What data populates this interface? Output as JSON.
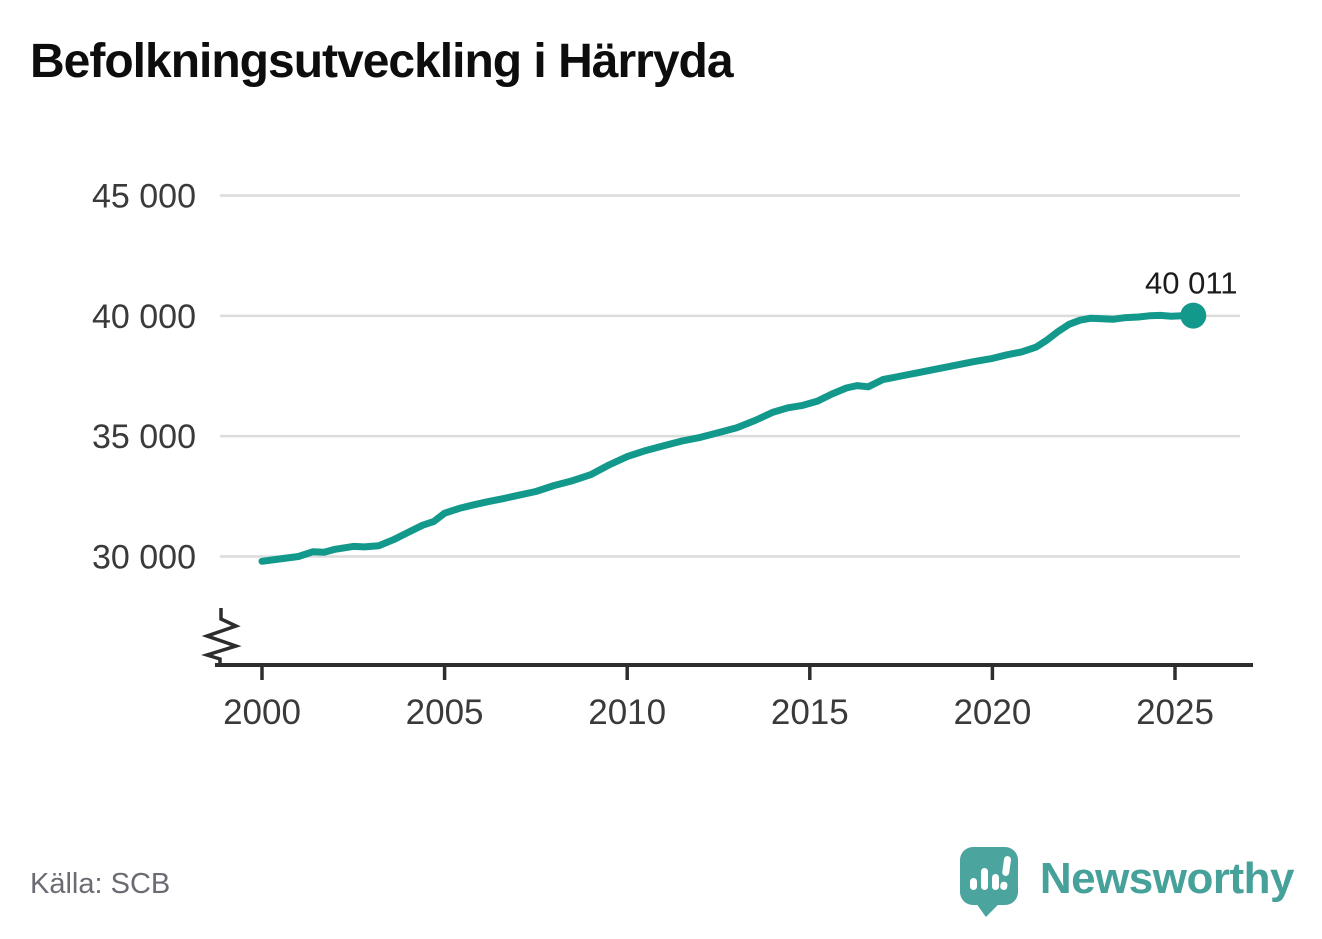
{
  "title": "Befolkningsutveckling i Härryda",
  "source": "Källa: SCB",
  "branding": {
    "wordmark": "Newsworthy",
    "logo_icon": "bar-chart-exclamation-speech-bubble"
  },
  "colors": {
    "line": "#12998c",
    "end_dot": "#12998c",
    "grid": "#dcdcdc",
    "axis": "#2d2d2d",
    "tick_label": "#3a3a3a",
    "end_label": "#1b1b1b",
    "title": "#0d0d0d",
    "source_text": "#6b6b74",
    "brand_teal": "#4ba59e",
    "wordmark_teal": "#45a19a"
  },
  "chart_data": {
    "type": "line",
    "title": "Befolkningsutveckling i Härryda",
    "xlabel": "",
    "ylabel": "",
    "grid": "horizontal",
    "legend": "none",
    "axis_break_bottom_left": true,
    "x_ticks": [
      {
        "value": 2000,
        "label": "2000"
      },
      {
        "value": 2005,
        "label": "2005"
      },
      {
        "value": 2010,
        "label": "2010"
      },
      {
        "value": 2015,
        "label": "2015"
      },
      {
        "value": 2020,
        "label": "2020"
      },
      {
        "value": 2025,
        "label": "2025"
      }
    ],
    "y_ticks": [
      {
        "value": 30000,
        "label": "30 000"
      },
      {
        "value": 35000,
        "label": "35 000"
      },
      {
        "value": 40000,
        "label": "40 000"
      },
      {
        "value": 45000,
        "label": "45 000"
      }
    ],
    "xlim": [
      1998.7,
      2027.1
    ],
    "ylim": [
      27500,
      46500
    ],
    "end_label": "40 011",
    "last_point": {
      "x": 2025.5,
      "y": 40011
    },
    "series": [
      {
        "name": "Befolkning i Härryda",
        "points": [
          [
            2000.0,
            29800
          ],
          [
            2000.5,
            29900
          ],
          [
            2001.0,
            30000
          ],
          [
            2001.4,
            30200
          ],
          [
            2001.7,
            30180
          ],
          [
            2002.0,
            30300
          ],
          [
            2002.5,
            30420
          ],
          [
            2002.8,
            30400
          ],
          [
            2003.2,
            30450
          ],
          [
            2003.6,
            30700
          ],
          [
            2004.0,
            31000
          ],
          [
            2004.4,
            31300
          ],
          [
            2004.7,
            31450
          ],
          [
            2005.0,
            31800
          ],
          [
            2005.4,
            32000
          ],
          [
            2005.8,
            32150
          ],
          [
            2006.2,
            32280
          ],
          [
            2006.6,
            32400
          ],
          [
            2007.0,
            32540
          ],
          [
            2007.5,
            32700
          ],
          [
            2008.0,
            32950
          ],
          [
            2008.5,
            33150
          ],
          [
            2009.0,
            33400
          ],
          [
            2009.5,
            33800
          ],
          [
            2010.0,
            34150
          ],
          [
            2010.5,
            34400
          ],
          [
            2011.0,
            34600
          ],
          [
            2011.5,
            34800
          ],
          [
            2012.0,
            34950
          ],
          [
            2012.5,
            35150
          ],
          [
            2013.0,
            35350
          ],
          [
            2013.5,
            35650
          ],
          [
            2014.0,
            36000
          ],
          [
            2014.4,
            36180
          ],
          [
            2014.8,
            36280
          ],
          [
            2015.2,
            36450
          ],
          [
            2015.6,
            36750
          ],
          [
            2016.0,
            37000
          ],
          [
            2016.3,
            37100
          ],
          [
            2016.6,
            37050
          ],
          [
            2017.0,
            37350
          ],
          [
            2017.5,
            37500
          ],
          [
            2018.0,
            37650
          ],
          [
            2018.5,
            37800
          ],
          [
            2019.0,
            37950
          ],
          [
            2019.5,
            38100
          ],
          [
            2020.0,
            38230
          ],
          [
            2020.4,
            38380
          ],
          [
            2020.8,
            38500
          ],
          [
            2021.2,
            38700
          ],
          [
            2021.5,
            39000
          ],
          [
            2021.8,
            39350
          ],
          [
            2022.1,
            39650
          ],
          [
            2022.4,
            39820
          ],
          [
            2022.7,
            39900
          ],
          [
            2023.0,
            39880
          ],
          [
            2023.3,
            39855
          ],
          [
            2023.6,
            39920
          ],
          [
            2024.0,
            39950
          ],
          [
            2024.3,
            40000
          ],
          [
            2024.6,
            40020
          ],
          [
            2024.9,
            39985
          ],
          [
            2025.2,
            40000
          ],
          [
            2025.5,
            40011
          ]
        ]
      }
    ]
  }
}
